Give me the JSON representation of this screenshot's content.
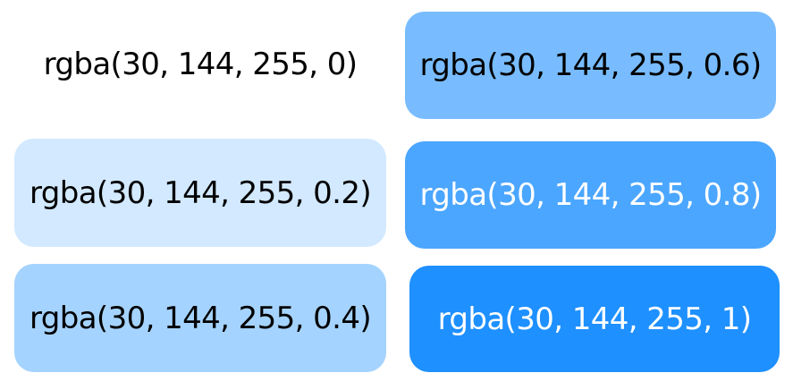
{
  "swatches": [
    {
      "label": "rgba(30, 144, 255, 0)",
      "background": "rgba(30, 144, 255, 0)",
      "text_color": "#000000"
    },
    {
      "label": "rgba(30, 144, 255, 0.6)",
      "background": "rgba(30, 144, 255, 0.6)",
      "text_color": "#000000"
    },
    {
      "label": "rgba(30, 144, 255, 0.2)",
      "background": "rgba(30, 144, 255, 0.2)",
      "text_color": "#000000"
    },
    {
      "label": "rgba(30, 144, 255, 0.8)",
      "background": "rgba(30, 144, 255, 0.8)",
      "text_color": "#ffffff"
    },
    {
      "label": "rgba(30, 144, 255, 0.4)",
      "background": "rgba(30, 144, 255, 0.4)",
      "text_color": "#000000"
    },
    {
      "label": "rgba(30, 144, 255, 1)",
      "background": "rgba(30, 144, 255, 1)",
      "text_color": "#ffffff"
    }
  ]
}
